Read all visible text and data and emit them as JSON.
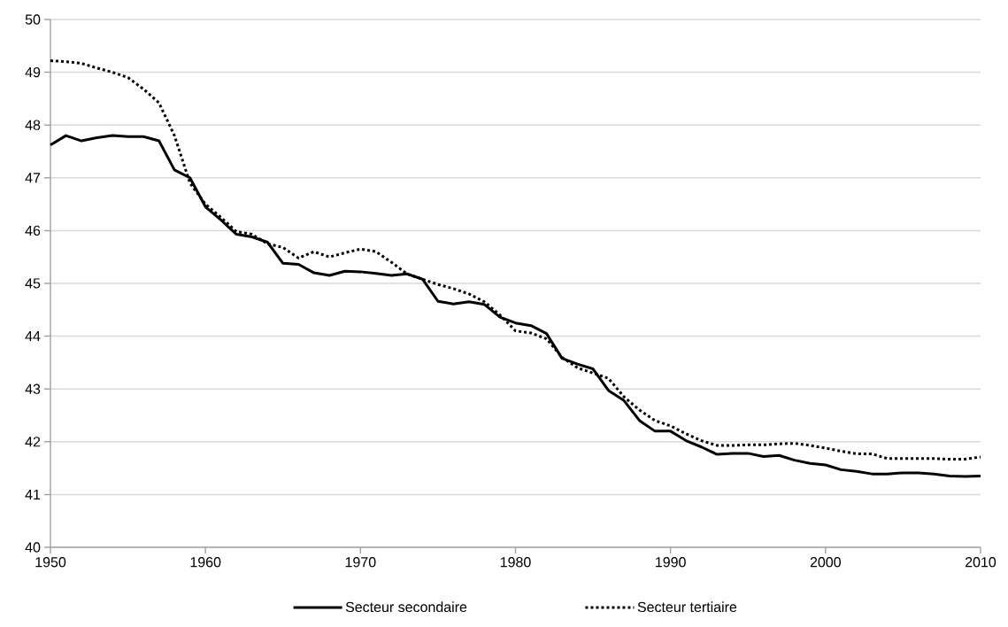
{
  "chart_data": {
    "type": "line",
    "x": [
      1950,
      1951,
      1952,
      1953,
      1954,
      1955,
      1956,
      1957,
      1958,
      1959,
      1960,
      1961,
      1962,
      1963,
      1964,
      1965,
      1966,
      1967,
      1968,
      1969,
      1970,
      1971,
      1972,
      1973,
      1974,
      1975,
      1976,
      1977,
      1978,
      1979,
      1980,
      1981,
      1982,
      1983,
      1984,
      1985,
      1986,
      1987,
      1988,
      1989,
      1990,
      1991,
      1992,
      1993,
      1994,
      1995,
      1996,
      1997,
      1998,
      1999,
      2000,
      2001,
      2002,
      2003,
      2004,
      2005,
      2006,
      2007,
      2008,
      2009,
      2010
    ],
    "series": [
      {
        "name": "Secteur secondaire",
        "color": "#000000",
        "line_style": "solid",
        "values": [
          47.62,
          47.8,
          47.7,
          47.76,
          47.8,
          47.78,
          47.78,
          47.7,
          47.15,
          47.0,
          46.45,
          46.2,
          45.93,
          45.88,
          45.78,
          45.38,
          45.36,
          45.2,
          45.15,
          45.23,
          45.22,
          45.19,
          45.15,
          45.18,
          45.08,
          44.66,
          44.61,
          44.65,
          44.6,
          44.36,
          44.25,
          44.2,
          44.05,
          43.58,
          43.47,
          43.38,
          42.97,
          42.78,
          42.4,
          42.2,
          42.2,
          42.02,
          41.9,
          41.76,
          41.78,
          41.78,
          41.72,
          41.74,
          41.65,
          41.59,
          41.56,
          41.47,
          41.44,
          41.39,
          41.39,
          41.41,
          41.41,
          41.39,
          41.35,
          41.34,
          41.35
        ]
      },
      {
        "name": "Secteur tertiaire",
        "color": "#000000",
        "line_style": "dashed",
        "values": [
          49.22,
          49.2,
          49.17,
          49.08,
          49.0,
          48.9,
          48.68,
          48.42,
          47.8,
          46.9,
          46.5,
          46.25,
          45.98,
          45.93,
          45.75,
          45.68,
          45.48,
          45.6,
          45.5,
          45.58,
          45.65,
          45.6,
          45.4,
          45.18,
          45.08,
          44.98,
          44.9,
          44.8,
          44.65,
          44.4,
          44.1,
          44.06,
          43.95,
          43.6,
          43.4,
          43.3,
          43.2,
          42.85,
          42.6,
          42.4,
          42.3,
          42.15,
          42.02,
          41.93,
          41.93,
          41.94,
          41.94,
          41.96,
          41.97,
          41.93,
          41.88,
          41.82,
          41.77,
          41.77,
          41.68,
          41.68,
          41.68,
          41.68,
          41.67,
          41.67,
          41.71
        ]
      }
    ],
    "xlim": [
      1950,
      2010
    ],
    "xticks": [
      1950,
      1960,
      1970,
      1980,
      1990,
      2000,
      2010
    ],
    "ylim": [
      40,
      50
    ],
    "yticks": [
      40,
      41,
      42,
      43,
      44,
      45,
      46,
      47,
      48,
      49,
      50
    ],
    "grid": "y",
    "legend": "bottom",
    "marker": "none"
  }
}
